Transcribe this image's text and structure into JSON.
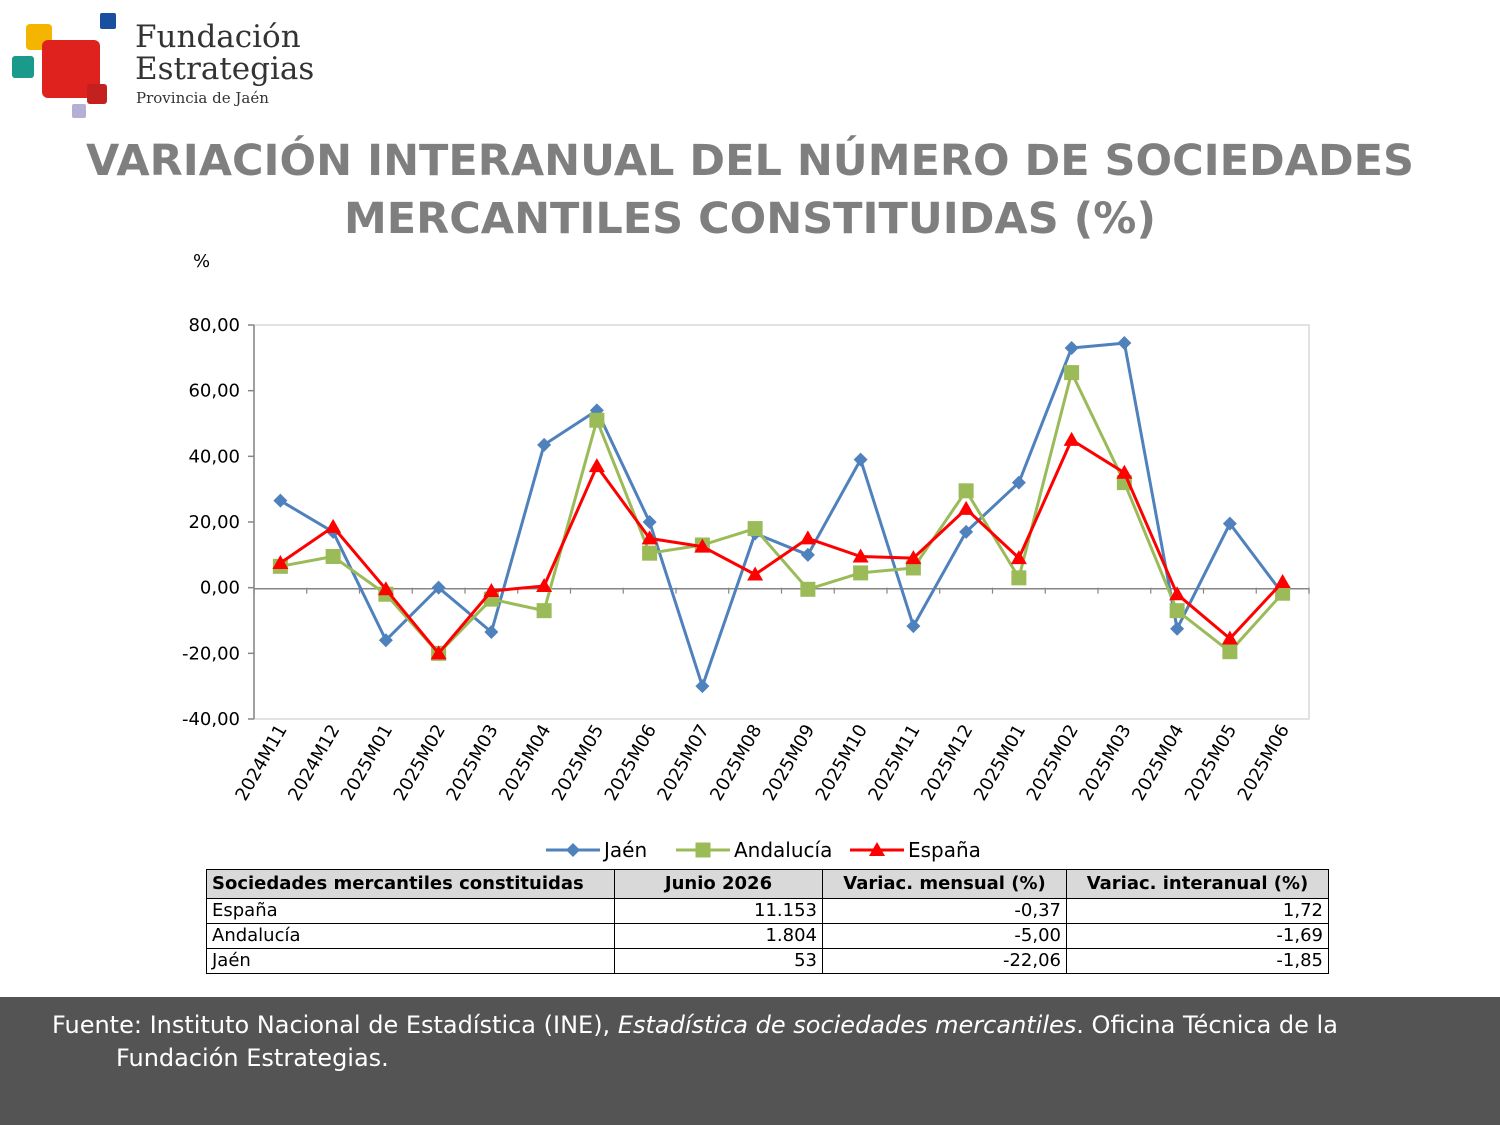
{
  "logo": {
    "line1": "Fundación",
    "line2": "Estrategias",
    "line3": "Provincia de Jaén"
  },
  "title": {
    "line1": "VARIACIÓN INTERANUAL DEL NÚMERO DE SOCIEDADES",
    "line2": "MERCANTILES CONSTITUIDAS (%)"
  },
  "chart_data": {
    "type": "line",
    "ylabel": "%",
    "ylim": [
      -40,
      80
    ],
    "y_ticks": [
      "80,00",
      "60,00",
      "40,00",
      "20,00",
      "0,00",
      "-20,00",
      "-40,00"
    ],
    "categories": [
      "2024M11",
      "2024M12",
      "2025M01",
      "2025M02",
      "2025M03",
      "2025M04",
      "2025M05",
      "2025M06",
      "2025M07",
      "2025M08",
      "2025M09",
      "2025M10",
      "2025M11",
      "2025M12",
      "2025M01",
      "2025M02",
      "2025M03",
      "2025M04",
      "2025M05",
      "2025M06"
    ],
    "legend_position": "bottom",
    "grid": false,
    "series": [
      {
        "name": "Jaén",
        "color": "#4f81bd",
        "marker": "diamond",
        "values": [
          26.5,
          17,
          -16,
          0,
          -13.5,
          43.5,
          54,
          20,
          -30,
          16.5,
          10,
          39,
          -11.7,
          17,
          32,
          73,
          74.5,
          -12.5,
          19.5,
          -1.85
        ]
      },
      {
        "name": "Andalucía",
        "color": "#9bbb59",
        "marker": "square",
        "values": [
          6.5,
          9.5,
          -2,
          -20,
          -3.5,
          -7,
          51,
          10.5,
          13,
          18,
          -0.5,
          4.5,
          6,
          29.5,
          3,
          65.5,
          32,
          -7,
          -19.5,
          -1.69
        ]
      },
      {
        "name": "España",
        "color": "#ff0000",
        "marker": "triangle",
        "values": [
          7.5,
          18.5,
          -0.5,
          -20,
          -1,
          0.5,
          37,
          15,
          12.5,
          4,
          15,
          9.5,
          9,
          24,
          9,
          45,
          35,
          -2,
          -15.5,
          1.72
        ]
      }
    ]
  },
  "table": {
    "headers": [
      "Sociedades mercantiles constituidas",
      "Junio 2026",
      "Variac. mensual (%)",
      "Variac. interanual (%)"
    ],
    "rows": [
      [
        "España",
        "11.153",
        "-0,37",
        "1,72"
      ],
      [
        "Andalucía",
        "1.804",
        "-5,00",
        "-1,69"
      ],
      [
        "Jaén",
        "53",
        "-22,06",
        "-1,85"
      ]
    ]
  },
  "footer": {
    "prefix": "Fuente: Instituto Nacional de Estadística (INE), ",
    "italic": "Estadística de sociedades mercantiles",
    "suffix": ". Oficina Técnica de la",
    "line2": "Fundación Estrategias."
  }
}
